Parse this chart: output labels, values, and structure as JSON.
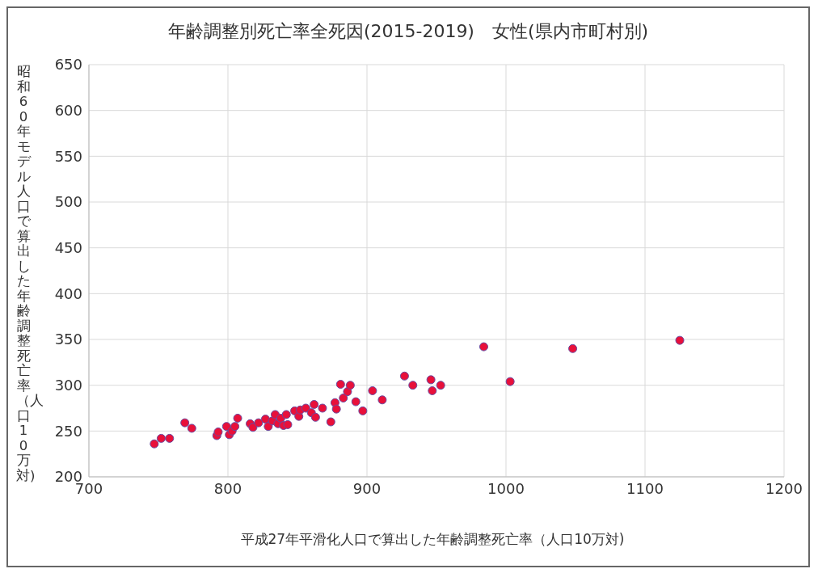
{
  "chart_data": {
    "type": "scatter",
    "title": "年齢調整別死亡率全死因(2015-2019)　女性(県内市町村別)",
    "xlabel": "平成27年平滑化人口で算出した年齢調整死亡率（人口10万対)",
    "ylabel": "昭和60年モデル人口で算出した年齢調整死亡率（人口10万対)",
    "x": [
      747,
      752,
      758,
      769,
      774,
      792,
      793,
      799,
      801,
      803,
      805,
      807,
      816,
      818,
      822,
      827,
      829,
      832,
      834,
      836,
      838,
      840,
      842,
      843,
      848,
      851,
      852,
      856,
      860,
      862,
      863,
      868,
      874,
      876,
      877,
      878,
      881,
      883,
      886,
      888,
      892,
      897,
      904,
      911,
      927,
      933,
      946,
      947,
      953,
      984,
      1003,
      1048,
      1125
    ],
    "series": [
      {
        "color": "#e8103a",
        "values": [
          236,
          242,
          242,
          259,
          253,
          245,
          249,
          255,
          246,
          250,
          255,
          264,
          258,
          254,
          259,
          263,
          255,
          261,
          268,
          258,
          264,
          256,
          268,
          257,
          272,
          266,
          273,
          275,
          270,
          279,
          265,
          275,
          260,
          null,
          281,
          274,
          301,
          286,
          293,
          300,
          282,
          272,
          294,
          284,
          310,
          300,
          306,
          294,
          300,
          342,
          304,
          340,
          349
        ]
      }
    ],
    "xlim": [
      700,
      1200
    ],
    "xticks": [
      700,
      800,
      900,
      1000,
      1100,
      1200
    ],
    "ylim": [
      200,
      650
    ],
    "yticks": [
      200,
      250,
      300,
      350,
      400,
      450,
      500,
      550,
      600,
      650
    ],
    "grid": true,
    "marker": "circle"
  }
}
